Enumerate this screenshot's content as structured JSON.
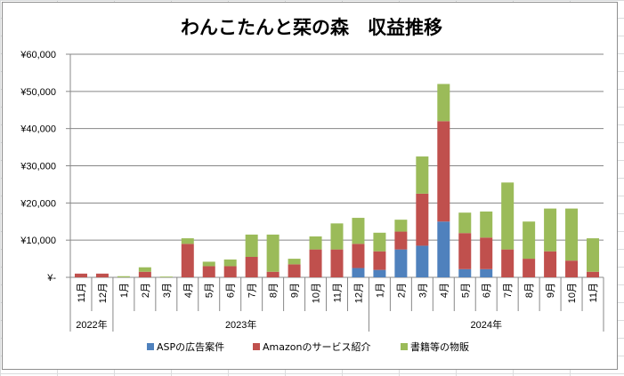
{
  "chart_data": {
    "type": "bar",
    "stacked": true,
    "title": "わんこたんと栞の森　収益推移",
    "y_tick_labels": [
      "¥-",
      "¥10,000",
      "¥20,000",
      "¥30,000",
      "¥40,000",
      "¥50,000",
      "¥60,000"
    ],
    "ylim": [
      0,
      60000
    ],
    "y_ticks": [
      0,
      10000,
      20000,
      30000,
      40000,
      50000,
      60000
    ],
    "grid": true,
    "legend_position": "bottom",
    "categories": [
      "11月",
      "12月",
      "1月",
      "2月",
      "3月",
      "4月",
      "5月",
      "6月",
      "7月",
      "8月",
      "9月",
      "10月",
      "11月",
      "12月",
      "1月",
      "2月",
      "3月",
      "4月",
      "5月",
      "6月",
      "7月",
      "8月",
      "9月",
      "10月",
      "11月"
    ],
    "year_groups": [
      {
        "label": "2022年",
        "start": 0,
        "end": 1
      },
      {
        "label": "2023年",
        "start": 2,
        "end": 13
      },
      {
        "label": "2024年",
        "start": 14,
        "end": 24
      }
    ],
    "series": [
      {
        "name": "ASPの広告案件",
        "color": "#4f81bd",
        "values": [
          0,
          0,
          0,
          0,
          0,
          0,
          0,
          0,
          0,
          0,
          0,
          0,
          0,
          2500,
          2000,
          7500,
          8500,
          15000,
          2200,
          2200,
          0,
          0,
          0,
          0,
          0
        ]
      },
      {
        "name": "Amazonのサービス紹介",
        "color": "#c0504d",
        "values": [
          1000,
          1000,
          0,
          1500,
          0,
          9000,
          3000,
          3000,
          5500,
          1500,
          3500,
          7500,
          7500,
          6500,
          5000,
          4800,
          14000,
          27000,
          9700,
          8500,
          7500,
          5000,
          7000,
          4500,
          1500
        ]
      },
      {
        "name": "書籍等の物販",
        "color": "#9bbb59",
        "values": [
          0,
          0,
          300,
          1200,
          200,
          1500,
          1200,
          1800,
          6000,
          10000,
          1500,
          3500,
          7000,
          7000,
          5000,
          3200,
          10000,
          10000,
          5500,
          7000,
          18000,
          10000,
          11500,
          14000,
          9000
        ]
      }
    ]
  }
}
